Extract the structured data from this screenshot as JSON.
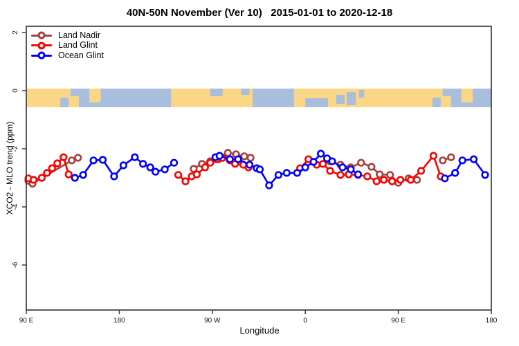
{
  "chart_data": {
    "type": "line",
    "title": "40N-50N November (Ver 10)   2015-01-01 to 2020-12-18",
    "xlabel": "Longitude",
    "ylabel": "XCO2 - MLO trend (ppm)",
    "legend_position": "top-left",
    "grid": false,
    "x_axis_degrees": [
      90,
      540
    ],
    "ylim": [
      -7.6,
      2.2
    ],
    "x_ticks": [
      {
        "deg": 90,
        "label": "90 E"
      },
      {
        "deg": 180,
        "label": "180"
      },
      {
        "deg": 270,
        "label": "90 W"
      },
      {
        "deg": 360,
        "label": "0"
      },
      {
        "deg": 450,
        "label": "90 E"
      },
      {
        "deg": 540,
        "label": "180"
      }
    ],
    "y_ticks": [
      {
        "value": 2,
        "label": "2"
      },
      {
        "value": 0,
        "label": "0"
      },
      {
        "value": -2,
        "label": "-2"
      },
      {
        "value": -4,
        "label": "-4"
      },
      {
        "value": -6,
        "label": "-6"
      }
    ],
    "map_band": {
      "description": "40N-50N world-map strip along y=0, longitude wraps 90E to 180",
      "ocean_color": "#A9BEDC",
      "land_color": "#FAD687",
      "value_top": 0.07,
      "value_bottom": -0.57,
      "land_spans_deg": [
        [
          90,
          141
        ],
        [
          151,
          162
        ],
        [
          230,
          309
        ],
        [
          349,
          501
        ],
        [
          511,
          522
        ]
      ],
      "short_land_spans_deg": [
        [
          151,
          162
        ],
        [
          511,
          522
        ]
      ],
      "water_patches_deg": [
        [
          123,
          131,
          13,
          14
        ],
        [
          133,
          141,
          0,
          11
        ],
        [
          268,
          280,
          0,
          11
        ],
        [
          298,
          306,
          0,
          9
        ],
        [
          360,
          382,
          14,
          13
        ],
        [
          390,
          398,
          9,
          13
        ],
        [
          400,
          409,
          5,
          19
        ],
        [
          412,
          417,
          2,
          11
        ],
        [
          483,
          491,
          13,
          14
        ],
        [
          493,
          501,
          0,
          11
        ]
      ]
    },
    "series": [
      {
        "name": "Land Nadir",
        "color": "#A5403C",
        "segments": [
          [
            [
              92,
              -3.1
            ],
            [
              96,
              -3.2
            ],
            [
              134,
              -2.4
            ],
            [
              140,
              -2.31
            ]
          ],
          [
            [
              252,
              -2.69
            ],
            [
              260,
              -2.52
            ],
            [
              268,
              -2.43
            ],
            [
              276,
              -2.36
            ],
            [
              285,
              -2.14
            ],
            [
              293,
              -2.19
            ],
            [
              301,
              -2.26
            ],
            [
              307,
              -2.31
            ]
          ],
          [
            [
              384,
              -2.43
            ],
            [
              394,
              -2.55
            ],
            [
              404,
              -2.64
            ],
            [
              414,
              -2.48
            ],
            [
              424,
              -2.62
            ],
            [
              432,
              -2.88
            ],
            [
              442,
              -2.9
            ],
            [
              450,
              -3.17
            ],
            [
              460,
              -3.02
            ],
            [
              468,
              -3.07
            ]
          ],
          [
            [
              493,
              -2.4
            ],
            [
              501,
              -2.29
            ]
          ]
        ]
      },
      {
        "name": "Land Glint",
        "color": "#FF0000",
        "segments": [
          [
            [
              92,
              -3.02
            ],
            [
              97,
              -3.07
            ],
            [
              105,
              -3.0
            ],
            [
              110,
              -2.83
            ],
            [
              115,
              -2.67
            ],
            [
              120,
              -2.5
            ],
            [
              126,
              -2.29
            ],
            [
              131,
              -2.88
            ]
          ],
          [
            [
              237,
              -2.9
            ],
            [
              244,
              -3.12
            ],
            [
              250,
              -2.95
            ],
            [
              255,
              -2.88
            ],
            [
              263,
              -2.64
            ],
            [
              268,
              -2.48
            ],
            [
              274,
              -2.36
            ],
            [
              280,
              -2.31
            ],
            [
              287,
              -2.4
            ],
            [
              292,
              -2.52
            ],
            [
              300,
              -2.55
            ],
            [
              305,
              -2.64
            ]
          ],
          [
            [
              355,
              -2.67
            ],
            [
              363,
              -2.36
            ],
            [
              371,
              -2.55
            ],
            [
              377,
              -2.52
            ],
            [
              384,
              -2.76
            ],
            [
              394,
              -2.9
            ],
            [
              402,
              -2.88
            ],
            [
              411,
              -2.9
            ],
            [
              420,
              -2.95
            ],
            [
              429,
              -3.12
            ],
            [
              436,
              -3.07
            ],
            [
              444,
              -3.12
            ],
            [
              452,
              -3.07
            ],
            [
              462,
              -3.07
            ],
            [
              472,
              -2.76
            ],
            [
              484,
              -2.24
            ],
            [
              491,
              -2.95
            ]
          ]
        ]
      },
      {
        "name": "Ocean Glint",
        "color": "#0000FF",
        "segments": [
          [
            [
              137,
              -3.0
            ],
            [
              145,
              -2.9
            ],
            [
              155,
              -2.4
            ],
            [
              164,
              -2.38
            ],
            [
              175,
              -2.95
            ],
            [
              184,
              -2.57
            ],
            [
              195,
              -2.29
            ],
            [
              203,
              -2.52
            ],
            [
              210,
              -2.64
            ],
            [
              215,
              -2.79
            ],
            [
              224,
              -2.71
            ],
            [
              233,
              -2.48
            ]
          ],
          [
            [
              273,
              -2.29
            ],
            [
              277,
              -2.24
            ],
            [
              287,
              -2.36
            ],
            [
              295,
              -2.36
            ],
            [
              306,
              -2.55
            ],
            [
              313,
              -2.67
            ],
            [
              316,
              -2.71
            ],
            [
              325,
              -3.26
            ],
            [
              334,
              -2.9
            ],
            [
              342,
              -2.83
            ],
            [
              352,
              -2.83
            ],
            [
              360,
              -2.64
            ],
            [
              368,
              -2.45
            ],
            [
              375,
              -2.17
            ],
            [
              381,
              -2.33
            ],
            [
              386,
              -2.43
            ],
            [
              396,
              -2.64
            ],
            [
              404,
              -2.71
            ],
            [
              411,
              -2.88
            ]
          ],
          [
            [
              495,
              -3.02
            ],
            [
              505,
              -2.83
            ],
            [
              512,
              -2.4
            ],
            [
              523,
              -2.36
            ],
            [
              534,
              -2.9
            ]
          ]
        ]
      }
    ]
  }
}
